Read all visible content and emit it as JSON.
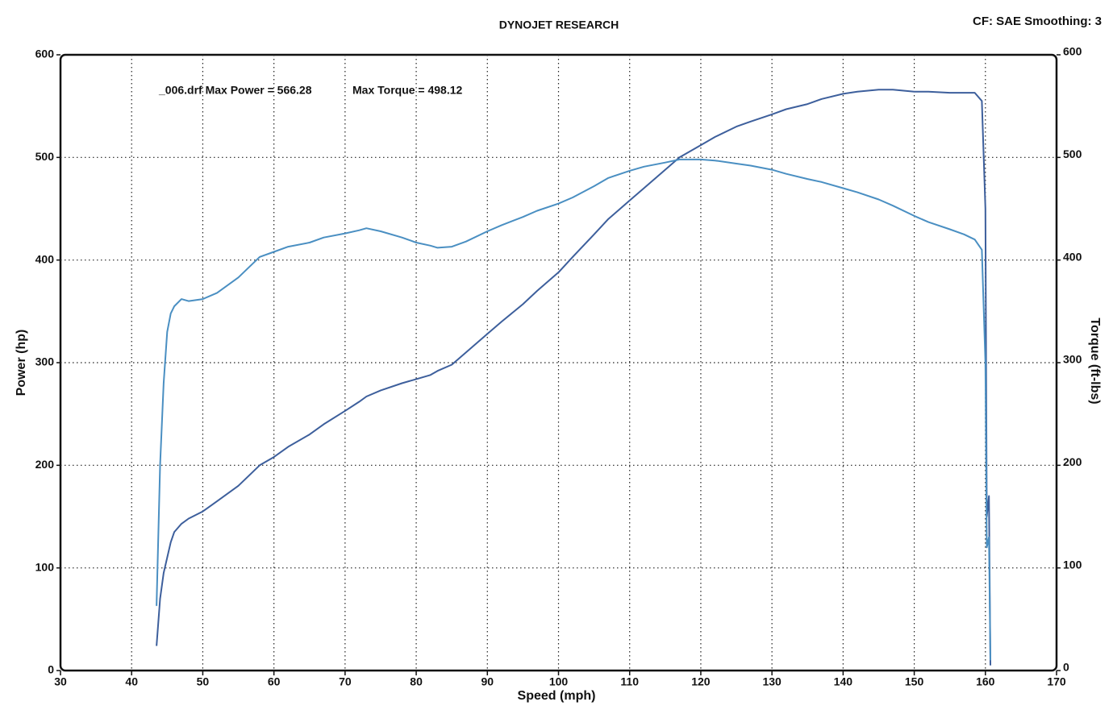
{
  "chart_data": {
    "type": "line",
    "title": "DYNOJET RESEARCH",
    "subtitle": "CF: SAE  Smoothing: 3",
    "annotations": [
      "_006.drf Max Power = 566.28",
      "Max Torque = 498.12"
    ],
    "x_label": "Speed (mph)",
    "y_label": "Power (hp)",
    "y2_label": "Torque (ft-lbs)",
    "x": [
      43.5,
      44,
      44.5,
      45,
      45.5,
      46,
      47,
      48,
      50,
      52,
      55,
      58,
      60,
      62,
      65,
      67,
      70,
      72,
      73,
      75,
      78,
      80,
      82,
      83,
      85,
      87,
      90,
      92,
      95,
      97,
      100,
      102,
      105,
      107,
      110,
      112,
      115,
      117,
      120,
      122,
      125,
      127,
      130,
      132,
      135,
      137,
      140,
      142,
      145,
      147,
      150,
      152,
      155,
      157,
      158.5,
      159.5,
      160,
      160.2,
      160.5,
      160.7
    ],
    "series": [
      {
        "color": "#3d5f9c",
        "values": [
          24,
          70,
          95,
          110,
          125,
          135,
          143,
          148,
          155,
          165,
          180,
          200,
          208,
          218,
          230,
          240,
          253,
          262,
          267,
          273,
          280,
          284,
          288,
          292,
          298,
          310,
          328,
          340,
          357,
          370,
          388,
          403,
          425,
          440,
          458,
          470,
          488,
          500,
          512,
          520,
          530,
          535,
          542,
          547,
          552,
          557,
          562,
          564,
          566,
          566,
          564,
          564,
          563,
          563,
          563,
          555,
          450,
          150,
          170,
          5
        ]
      },
      {
        "color": "#4a8fc2",
        "axis": "y2",
        "values": [
          63,
          200,
          280,
          330,
          348,
          355,
          362,
          360,
          362,
          368,
          383,
          403,
          408,
          413,
          417,
          422,
          426,
          429,
          431,
          428,
          422,
          417,
          414,
          412,
          413,
          418,
          428,
          434,
          442,
          448,
          455,
          461,
          472,
          480,
          487,
          491,
          495,
          498,
          498,
          497,
          494,
          492,
          488,
          484,
          479,
          476,
          470,
          466,
          459,
          453,
          443,
          437,
          430,
          425,
          420,
          410,
          300,
          120,
          130,
          10
        ]
      }
    ],
    "xlim": [
      30,
      170
    ],
    "xticks": [
      30,
      40,
      50,
      60,
      70,
      80,
      90,
      100,
      110,
      120,
      130,
      140,
      150,
      160,
      170
    ],
    "ylim": [
      0,
      600
    ],
    "yticks": [
      0,
      100,
      200,
      300,
      400,
      500,
      600
    ],
    "y2lim": [
      0,
      600
    ],
    "y2ticks": [
      0,
      100,
      200,
      300,
      400,
      500,
      600
    ],
    "grid": true
  }
}
